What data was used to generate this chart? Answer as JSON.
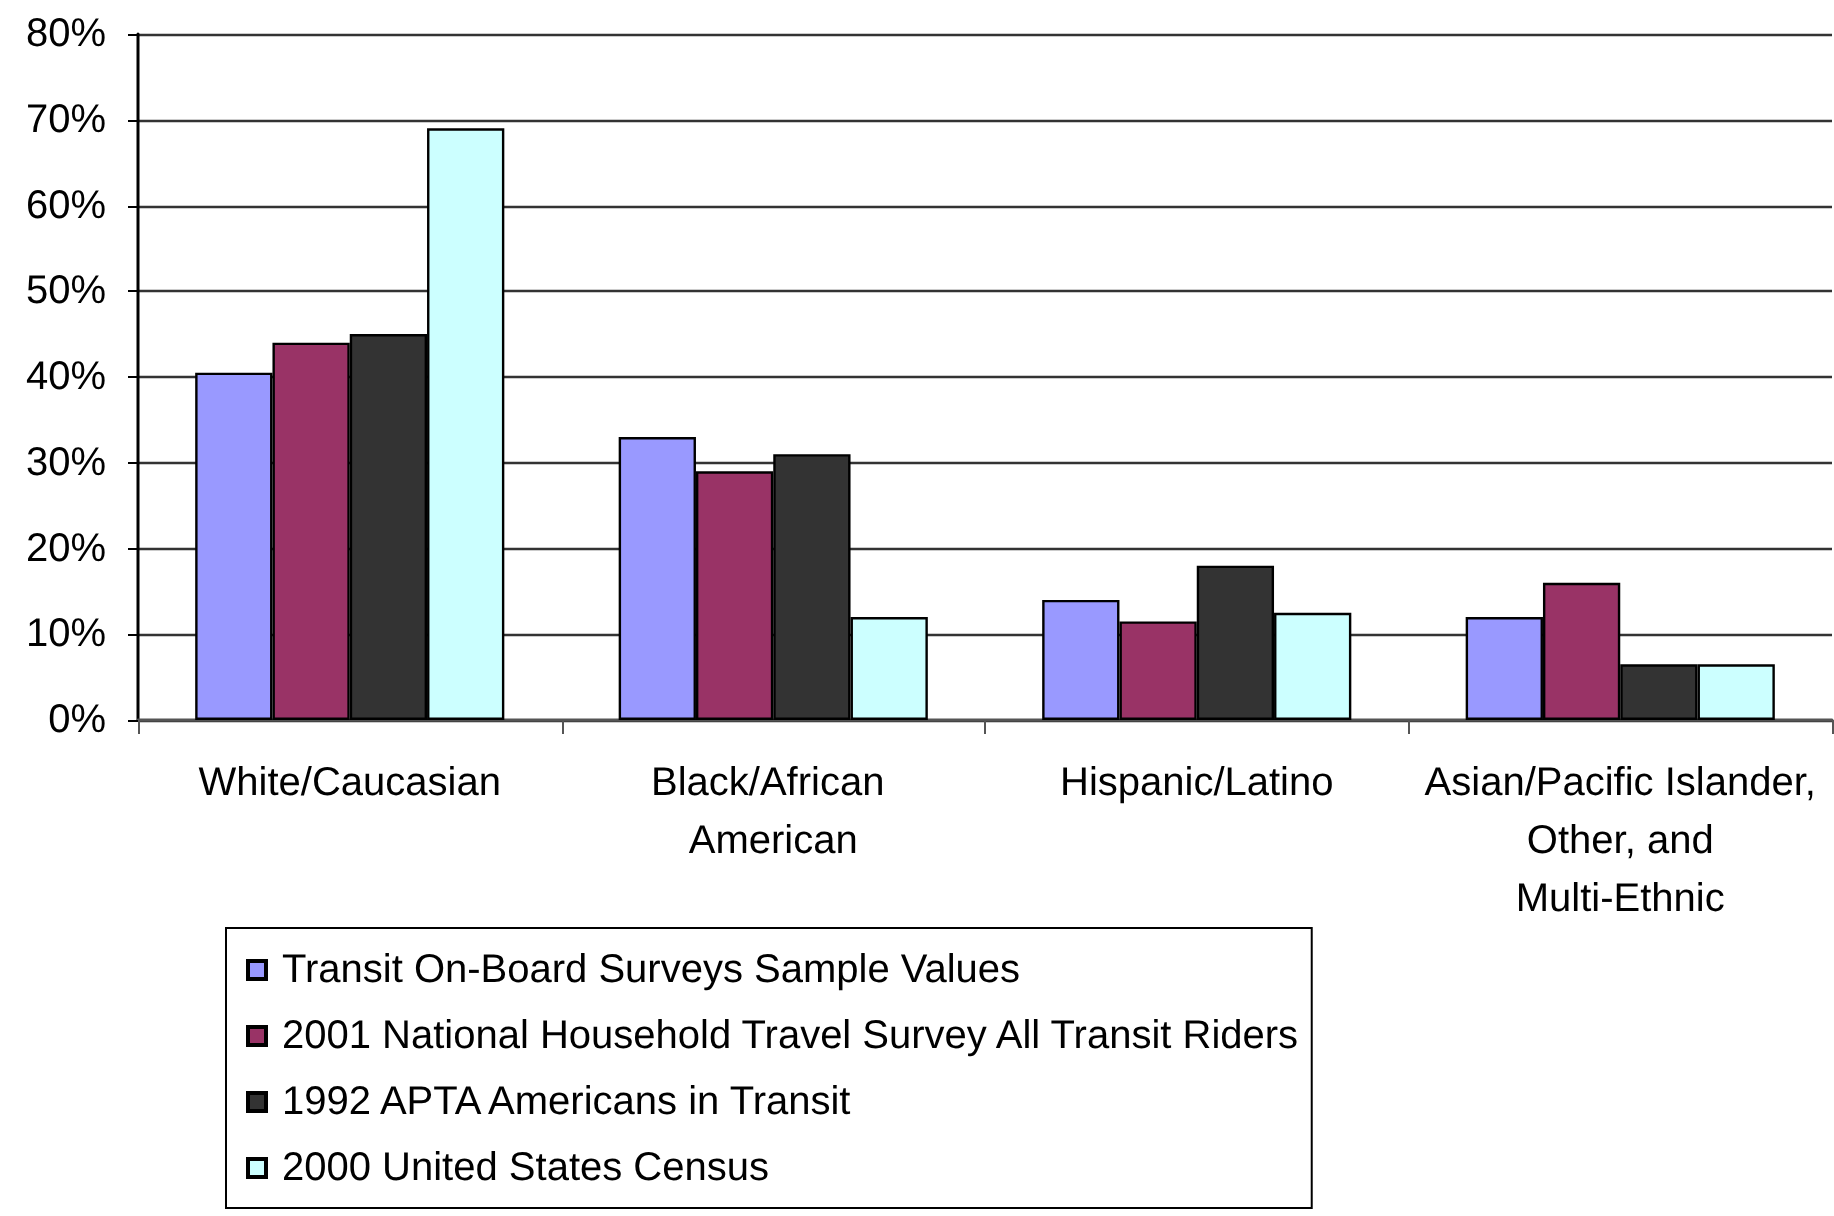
{
  "chart_data": {
    "type": "bar",
    "categories": [
      "White/Caucasian",
      "Black/African American",
      "Hispanic/Latino",
      "Asian/Pacific Islander, Other, and Multi-Ethnic"
    ],
    "series": [
      {
        "name": "Transit On-Board Surveys Sample Values",
        "color": "#9999ff",
        "values": [
          40.5,
          33,
          14,
          12
        ]
      },
      {
        "name": "2001 National Household Travel Survey All Transit Riders",
        "color": "#993366",
        "values": [
          44,
          29,
          11.5,
          16
        ]
      },
      {
        "name": "1992 APTA Americans in Transit",
        "color": "#333333",
        "values": [
          45,
          31,
          18,
          6.5
        ]
      },
      {
        "name": "2000 United States Census",
        "color": "#ccffff",
        "values": [
          69,
          12,
          12.5,
          6.5
        ]
      }
    ],
    "ylim": [
      0,
      80
    ],
    "yticks": [
      {
        "value": 0,
        "label": "0%"
      },
      {
        "value": 10,
        "label": "10%"
      },
      {
        "value": 20,
        "label": "20%"
      },
      {
        "value": 30,
        "label": "30%"
      },
      {
        "value": 40,
        "label": "40%"
      },
      {
        "value": 50,
        "label": "50%"
      },
      {
        "value": 60,
        "label": "60%"
      },
      {
        "value": 70,
        "label": "70%"
      },
      {
        "value": 80,
        "label": "80%"
      }
    ],
    "grid": "y",
    "legend": "bottom left"
  }
}
